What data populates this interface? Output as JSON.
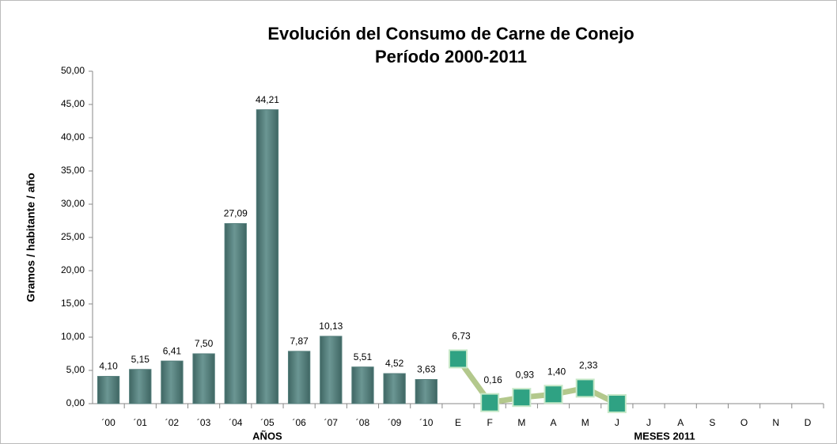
{
  "chart_data": {
    "type": "bar+line",
    "title": "Evolución del Consumo de Carne de Conejo",
    "subtitle": "Período 2000-2011",
    "y_label": "Gramos / habitante / año",
    "categories": [
      "´00",
      "´01",
      "´02",
      "´03",
      "´04",
      "´05",
      "´06",
      "´07",
      "´08",
      "´09",
      "´10",
      "E",
      "F",
      "M",
      "A",
      "M",
      "J",
      "J",
      "A",
      "S",
      "O",
      "N",
      "D"
    ],
    "groups": [
      {
        "label": "AÑOS",
        "start": 0,
        "end": 10
      },
      {
        "label": "MESES 2011",
        "start": 11,
        "end": 22
      }
    ],
    "series": [
      {
        "type": "bar",
        "color": "#557f7c",
        "values": [
          4.1,
          5.15,
          6.41,
          7.5,
          27.09,
          44.21,
          7.87,
          10.13,
          5.51,
          4.52,
          3.63,
          null,
          null,
          null,
          null,
          null,
          null,
          null,
          null,
          null,
          null,
          null,
          null
        ],
        "value_labels": [
          "4,10",
          "5,15",
          "6,41",
          "7,50",
          "27,09",
          "44,21",
          "7,87",
          "10,13",
          "5,51",
          "4,52",
          "3,63",
          null,
          null,
          null,
          null,
          null,
          null,
          null,
          null,
          null,
          null,
          null,
          null
        ]
      },
      {
        "type": "line",
        "color": "#b3c88c",
        "marker_color": "#2fa283",
        "values": [
          null,
          null,
          null,
          null,
          null,
          null,
          null,
          null,
          null,
          null,
          null,
          6.73,
          0.16,
          0.93,
          1.4,
          2.33,
          0,
          null,
          null,
          null,
          null,
          null,
          null
        ],
        "value_labels": [
          null,
          null,
          null,
          null,
          null,
          null,
          null,
          null,
          null,
          null,
          null,
          "6,73",
          "0,16",
          "0,93",
          "1,40",
          "2,33",
          null,
          null,
          null,
          null,
          null,
          null,
          null
        ]
      }
    ],
    "ylim": [
      0,
      50
    ],
    "yticks": [
      {
        "value": 0,
        "label": "0,00"
      },
      {
        "value": 5,
        "label": "5,00"
      },
      {
        "value": 10,
        "label": "10,00"
      },
      {
        "value": 15,
        "label": "15,00"
      },
      {
        "value": 20,
        "label": "20,00"
      },
      {
        "value": 25,
        "label": "25,00"
      },
      {
        "value": 30,
        "label": "30,00"
      },
      {
        "value": 35,
        "label": "35,00"
      },
      {
        "value": 40,
        "label": "40,00"
      },
      {
        "value": 45,
        "label": "45,00"
      },
      {
        "value": 50,
        "label": "50,00"
      }
    ],
    "grid": false
  }
}
